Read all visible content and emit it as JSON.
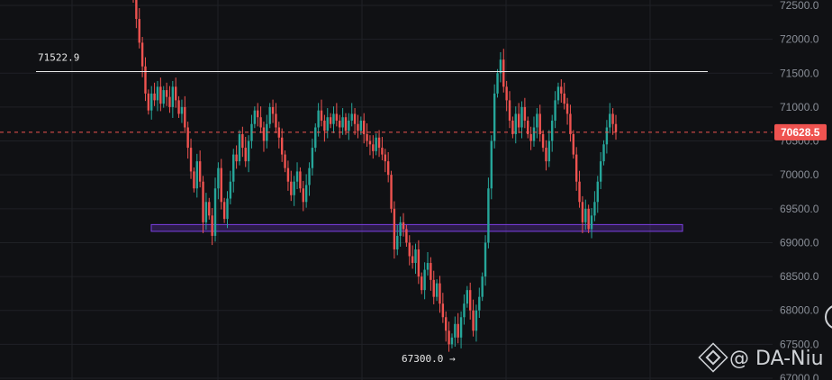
{
  "chart_data": {
    "type": "candlestick",
    "title": "",
    "xlabel": "",
    "ylabel": "",
    "ylim": [
      67000,
      72600
    ],
    "y_ticks": [
      "72500.0",
      "72000.0",
      "71500.0",
      "71000.0",
      "70500.0",
      "70000.0",
      "69500.0",
      "69000.0",
      "68500.0",
      "68000.0",
      "67500.0",
      "67000.0"
    ],
    "grid": true,
    "colors": {
      "up": "#26a69a",
      "down": "#ef5350",
      "background": "#101114",
      "grid": "#1f2126",
      "axis_text": "#8a8f98",
      "current_price_line": "#ef5350",
      "zone": "#7b3fe4"
    },
    "current_price": {
      "label": "70628.5",
      "value": 70628.5
    },
    "resistance_line": {
      "label": "71522.9",
      "value": 71522.9
    },
    "support_zone": {
      "low": 69160,
      "high": 69260
    },
    "low_marker": {
      "label": "67300.0 →",
      "value": 67300
    },
    "candles_closes": [
      72600,
      72300,
      71950,
      71600,
      71200,
      70950,
      71200,
      71100,
      71300,
      71050,
      71250,
      71150,
      71000,
      71300,
      71100,
      70900,
      71000,
      70700,
      70400,
      70050,
      69800,
      70200,
      69900,
      69300,
      69600,
      69400,
      69100,
      69800,
      70100,
      69600,
      69350,
      69650,
      69900,
      70300,
      70200,
      70600,
      70400,
      70200,
      70500,
      70750,
      70950,
      70850,
      70700,
      70500,
      70750,
      71000,
      70900,
      70700,
      70550,
      70300,
      70100,
      69900,
      69700,
      69900,
      70050,
      69800,
      69600,
      69850,
      70100,
      70400,
      70700,
      70950,
      70800,
      70650,
      70850,
      70750,
      70900,
      70800,
      70700,
      70850,
      70650,
      70800,
      70900,
      70750,
      70650,
      70800,
      70600,
      70500,
      70450,
      70350,
      70550,
      70400,
      70300,
      70200,
      70000,
      69500,
      68900,
      69100,
      69300,
      69200,
      69000,
      68800,
      68700,
      68900,
      68500,
      68300,
      68600,
      68700,
      68450,
      68200,
      68400,
      68100,
      67900,
      67700,
      67500,
      67600,
      67800,
      67600,
      67900,
      68100,
      68300,
      68000,
      67700,
      68000,
      68200,
      68500,
      69000,
      69800,
      70500,
      71200,
      71500,
      71700,
      71300,
      71100,
      70800,
      70600,
      70900,
      70700,
      71000,
      70800,
      70600,
      70500,
      70700,
      70900,
      70600,
      70400,
      70200,
      70500,
      70800,
      71100,
      71300,
      71200,
      71050,
      70900,
      70600,
      70300,
      69900,
      69600,
      69300,
      69500,
      69200,
      69400,
      69600,
      69900,
      70200,
      70450,
      70700,
      70900,
      70750,
      70628.5
    ],
    "watermark": "@ DA-Niu"
  }
}
